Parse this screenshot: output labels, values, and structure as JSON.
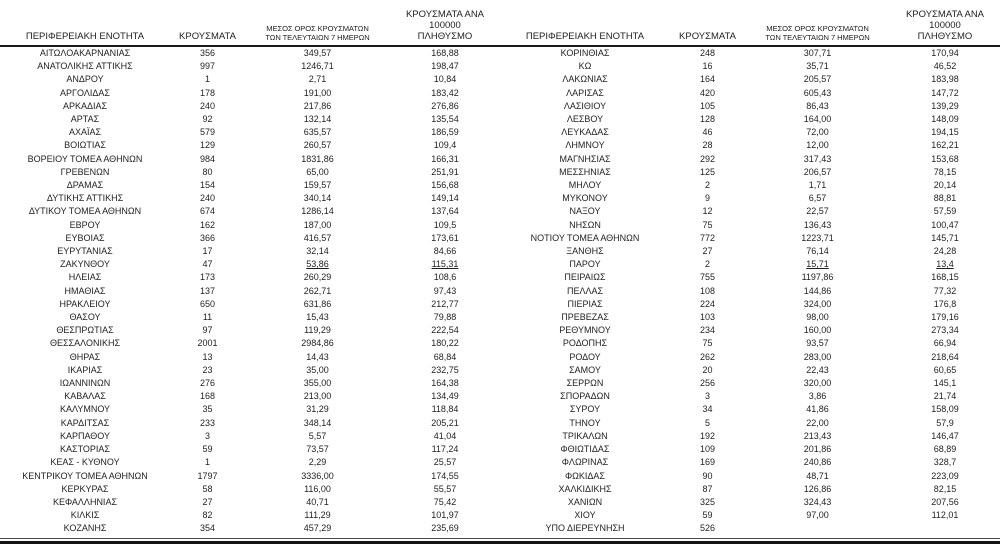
{
  "columns": {
    "region": "ΠΕΡΙΦΕΡΕΙΑΚΗ ΕΝΟΤΗΤΑ",
    "cases": "ΚΡΟΥΣΜΑΤΑ",
    "avg7_line1": "ΜΕΣΟΣ ΟΡΟΣ ΚΡΟΥΣΜΑΤΩΝ",
    "avg7_line2": "ΤΩΝ ΤΕΛΕΥΤΑΙΩΝ 7 ΗΜΕΡΩΝ",
    "per100k_line1": "ΚΡΟΥΣΜΑΤΑ ΑΝΑ 100000",
    "per100k_line2": "ΠΛΗΘΥΣΜΟ"
  },
  "colors": {
    "text": "#1f1f1f",
    "rule": "#1a1a1a",
    "background": "#ffffff"
  },
  "left_rows": [
    {
      "region": "ΑΙΤΩΛΟΑΚΑΡΝΑΝΙΑΣ",
      "cases": "356",
      "avg7": "349,57",
      "per100k": "168,88"
    },
    {
      "region": "ΑΝΑΤΟΛΙΚΗΣ ΑΤΤΙΚΗΣ",
      "cases": "997",
      "avg7": "1246,71",
      "per100k": "198,47"
    },
    {
      "region": "ΑΝΔΡΟΥ",
      "cases": "1",
      "avg7": "2,71",
      "per100k": "10,84"
    },
    {
      "region": "ΑΡΓΟΛΙΔΑΣ",
      "cases": "178",
      "avg7": "191,00",
      "per100k": "183,42"
    },
    {
      "region": "ΑΡΚΑΔΙΑΣ",
      "cases": "240",
      "avg7": "217,86",
      "per100k": "276,86"
    },
    {
      "region": "ΑΡΤΑΣ",
      "cases": "92",
      "avg7": "132,14",
      "per100k": "135,54"
    },
    {
      "region": "ΑΧΑΪΑΣ",
      "cases": "579",
      "avg7": "635,57",
      "per100k": "186,59"
    },
    {
      "region": "ΒΟΙΩΤΙΑΣ",
      "cases": "129",
      "avg7": "260,57",
      "per100k": "109,4"
    },
    {
      "region": "ΒΟΡΕΙΟΥ ΤΟΜΕΑ ΑΘΗΝΩΝ",
      "cases": "984",
      "avg7": "1831,86",
      "per100k": "166,31"
    },
    {
      "region": "ΓΡΕΒΕΝΩΝ",
      "cases": "80",
      "avg7": "65,00",
      "per100k": "251,91"
    },
    {
      "region": "ΔΡΑΜΑΣ",
      "cases": "154",
      "avg7": "159,57",
      "per100k": "156,68"
    },
    {
      "region": "ΔΥΤΙΚΗΣ ΑΤΤΙΚΗΣ",
      "cases": "240",
      "avg7": "340,14",
      "per100k": "149,14"
    },
    {
      "region": "ΔΥΤΙΚΟΥ ΤΟΜΕΑ ΑΘΗΝΩΝ",
      "cases": "674",
      "avg7": "1286,14",
      "per100k": "137,64"
    },
    {
      "region": "ΕΒΡΟΥ",
      "cases": "162",
      "avg7": "187,00",
      "per100k": "109,5"
    },
    {
      "region": "ΕΥΒΟΙΑΣ",
      "cases": "366",
      "avg7": "416,57",
      "per100k": "173,61"
    },
    {
      "region": "ΕΥΡΥΤΑΝΙΑΣ",
      "cases": "17",
      "avg7": "32,14",
      "per100k": "84,66"
    },
    {
      "region": "ΖΑΚΥΝΘΟΥ",
      "cases": "47",
      "avg7": "53,86",
      "per100k": "115,31",
      "u": true
    },
    {
      "region": "ΗΛΕΙΑΣ",
      "cases": "173",
      "avg7": "260,29",
      "per100k": "108,6"
    },
    {
      "region": "ΗΜΑΘΙΑΣ",
      "cases": "137",
      "avg7": "262,71",
      "per100k": "97,43"
    },
    {
      "region": "ΗΡΑΚΛΕΙΟΥ",
      "cases": "650",
      "avg7": "631,86",
      "per100k": "212,77"
    },
    {
      "region": "ΘΑΣΟΥ",
      "cases": "11",
      "avg7": "15,43",
      "per100k": "79,88"
    },
    {
      "region": "ΘΕΣΠΡΩΤΙΑΣ",
      "cases": "97",
      "avg7": "119,29",
      "per100k": "222,54"
    },
    {
      "region": "ΘΕΣΣΑΛΟΝΙΚΗΣ",
      "cases": "2001",
      "avg7": "2984,86",
      "per100k": "180,22"
    },
    {
      "region": "ΘΗΡΑΣ",
      "cases": "13",
      "avg7": "14,43",
      "per100k": "68,84"
    },
    {
      "region": "ΙΚΑΡΙΑΣ",
      "cases": "23",
      "avg7": "35,00",
      "per100k": "232,75"
    },
    {
      "region": "ΙΩΑΝΝΙΝΩΝ",
      "cases": "276",
      "avg7": "355,00",
      "per100k": "164,38"
    },
    {
      "region": "ΚΑΒΑΛΑΣ",
      "cases": "168",
      "avg7": "213,00",
      "per100k": "134,49"
    },
    {
      "region": "ΚΑΛΥΜΝΟΥ",
      "cases": "35",
      "avg7": "31,29",
      "per100k": "118,84"
    },
    {
      "region": "ΚΑΡΔΙΤΣΑΣ",
      "cases": "233",
      "avg7": "348,14",
      "per100k": "205,21"
    },
    {
      "region": "ΚΑΡΠΑΘΟΥ",
      "cases": "3",
      "avg7": "5,57",
      "per100k": "41,04"
    },
    {
      "region": "ΚΑΣΤΟΡΙΑΣ",
      "cases": "59",
      "avg7": "73,57",
      "per100k": "117,24"
    },
    {
      "region": "ΚΕΑΣ - ΚΥΘΝΟΥ",
      "cases": "1",
      "avg7": "2,29",
      "per100k": "25,57"
    },
    {
      "region": "ΚΕΝΤΡΙΚΟΥ ΤΟΜΕΑ ΑΘΗΝΩΝ",
      "cases": "1797",
      "avg7": "3336,00",
      "per100k": "174,55"
    },
    {
      "region": "ΚΕΡΚΥΡΑΣ",
      "cases": "58",
      "avg7": "116,00",
      "per100k": "55,57"
    },
    {
      "region": "ΚΕΦΑΛΛΗΝΙΑΣ",
      "cases": "27",
      "avg7": "40,71",
      "per100k": "75,42"
    },
    {
      "region": "ΚΙΛΚΙΣ",
      "cases": "82",
      "avg7": "111,29",
      "per100k": "101,97"
    },
    {
      "region": "ΚΟΖΑΝΗΣ",
      "cases": "354",
      "avg7": "457,29",
      "per100k": "235,69"
    }
  ],
  "right_rows": [
    {
      "region": "ΚΟΡΙΝΘΙΑΣ",
      "cases": "248",
      "avg7": "307,71",
      "per100k": "170,94"
    },
    {
      "region": "ΚΩ",
      "cases": "16",
      "avg7": "35,71",
      "per100k": "46,52"
    },
    {
      "region": "ΛΑΚΩΝΙΑΣ",
      "cases": "164",
      "avg7": "205,57",
      "per100k": "183,98"
    },
    {
      "region": "ΛΑΡΙΣΑΣ",
      "cases": "420",
      "avg7": "605,43",
      "per100k": "147,72"
    },
    {
      "region": "ΛΑΣΙΘΙΟΥ",
      "cases": "105",
      "avg7": "86,43",
      "per100k": "139,29"
    },
    {
      "region": "ΛΕΣΒΟΥ",
      "cases": "128",
      "avg7": "164,00",
      "per100k": "148,09"
    },
    {
      "region": "ΛΕΥΚΑΔΑΣ",
      "cases": "46",
      "avg7": "72,00",
      "per100k": "194,15"
    },
    {
      "region": "ΛΗΜΝΟΥ",
      "cases": "28",
      "avg7": "12,00",
      "per100k": "162,21"
    },
    {
      "region": "ΜΑΓΝΗΣΙΑΣ",
      "cases": "292",
      "avg7": "317,43",
      "per100k": "153,68"
    },
    {
      "region": "ΜΕΣΣΗΝΙΑΣ",
      "cases": "125",
      "avg7": "206,57",
      "per100k": "78,15"
    },
    {
      "region": "ΜΗΛΟΥ",
      "cases": "2",
      "avg7": "1,71",
      "per100k": "20,14"
    },
    {
      "region": "ΜΥΚΟΝΟΥ",
      "cases": "9",
      "avg7": "6,57",
      "per100k": "88,81"
    },
    {
      "region": "ΝΑΞΟΥ",
      "cases": "12",
      "avg7": "22,57",
      "per100k": "57,59"
    },
    {
      "region": "ΝΗΣΩΝ",
      "cases": "75",
      "avg7": "136,43",
      "per100k": "100,47"
    },
    {
      "region": "ΝΟΤΙΟΥ ΤΟΜΕΑ ΑΘΗΝΩΝ",
      "cases": "772",
      "avg7": "1223,71",
      "per100k": "145,71"
    },
    {
      "region": "ΞΑΝΘΗΣ",
      "cases": "27",
      "avg7": "76,14",
      "per100k": "24,28"
    },
    {
      "region": "ΠΑΡΟΥ",
      "cases": "2",
      "avg7": "15,71",
      "per100k": "13,4",
      "u": true
    },
    {
      "region": "ΠΕΙΡΑΙΩΣ",
      "cases": "755",
      "avg7": "1197,86",
      "per100k": "168,15"
    },
    {
      "region": "ΠΕΛΛΑΣ",
      "cases": "108",
      "avg7": "144,86",
      "per100k": "77,32"
    },
    {
      "region": "ΠΙΕΡΙΑΣ",
      "cases": "224",
      "avg7": "324,00",
      "per100k": "176,8"
    },
    {
      "region": "ΠΡΕΒΕΖΑΣ",
      "cases": "103",
      "avg7": "98,00",
      "per100k": "179,16"
    },
    {
      "region": "ΡΕΘΥΜΝΟΥ",
      "cases": "234",
      "avg7": "160,00",
      "per100k": "273,34"
    },
    {
      "region": "ΡΟΔΟΠΗΣ",
      "cases": "75",
      "avg7": "93,57",
      "per100k": "66,94"
    },
    {
      "region": "ΡΟΔΟΥ",
      "cases": "262",
      "avg7": "283,00",
      "per100k": "218,64"
    },
    {
      "region": "ΣΑΜΟΥ",
      "cases": "20",
      "avg7": "22,43",
      "per100k": "60,65"
    },
    {
      "region": "ΣΕΡΡΩΝ",
      "cases": "256",
      "avg7": "320,00",
      "per100k": "145,1"
    },
    {
      "region": "ΣΠΟΡΑΔΩΝ",
      "cases": "3",
      "avg7": "3,86",
      "per100k": "21,74"
    },
    {
      "region": "ΣΥΡΟΥ",
      "cases": "34",
      "avg7": "41,86",
      "per100k": "158,09"
    },
    {
      "region": "ΤΗΝΟΥ",
      "cases": "5",
      "avg7": "22,00",
      "per100k": "57,9"
    },
    {
      "region": "ΤΡΙΚΑΛΩΝ",
      "cases": "192",
      "avg7": "213,43",
      "per100k": "146,47"
    },
    {
      "region": "ΦΘΙΩΤΙΔΑΣ",
      "cases": "109",
      "avg7": "201,86",
      "per100k": "68,89"
    },
    {
      "region": "ΦΛΩΡΙΝΑΣ",
      "cases": "169",
      "avg7": "240,86",
      "per100k": "328,7"
    },
    {
      "region": "ΦΩΚΙΔΑΣ",
      "cases": "90",
      "avg7": "48,71",
      "per100k": "223,09"
    },
    {
      "region": "ΧΑΛΚΙΔΙΚΗΣ",
      "cases": "87",
      "avg7": "126,86",
      "per100k": "82,15"
    },
    {
      "region": "ΧΑΝΙΩΝ",
      "cases": "325",
      "avg7": "324,43",
      "per100k": "207,56"
    },
    {
      "region": "ΧΙΟΥ",
      "cases": "59",
      "avg7": "97,00",
      "per100k": "112,01"
    },
    {
      "region": "ΥΠΟ ΔΙΕΡΕΥΝΗΣΗ",
      "cases": "526",
      "avg7": "",
      "per100k": ""
    }
  ]
}
